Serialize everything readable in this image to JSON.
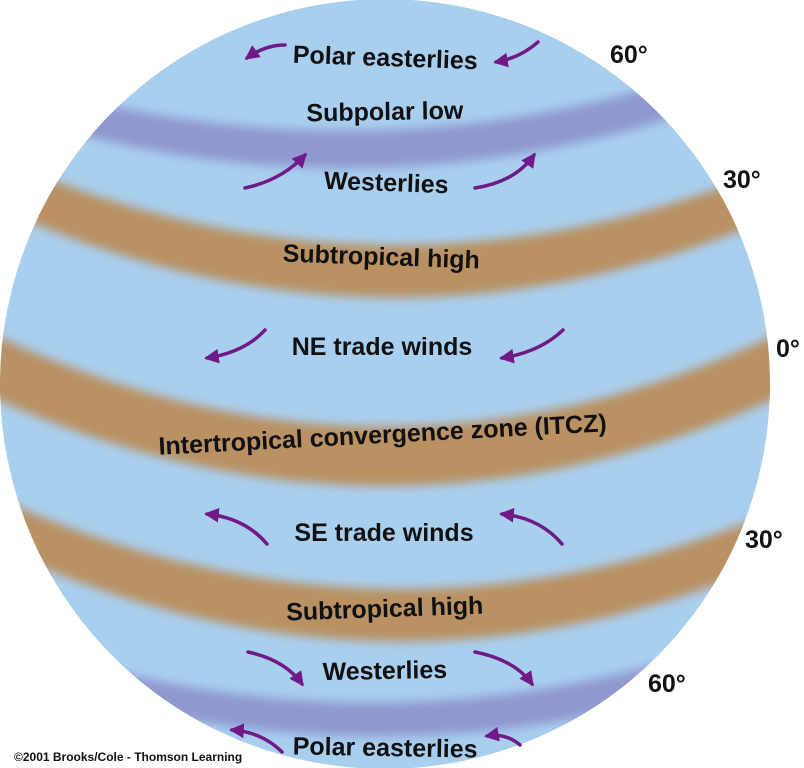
{
  "colors": {
    "globe": "#a9cfef",
    "subpolar_low": "#8f98cf",
    "high_pressure": "#b99162",
    "arrow": "#6f1a86",
    "text": "#111111"
  },
  "labels": {
    "polar_easterlies_north": "Polar easterlies",
    "subpolar_low": "Subpolar low",
    "westerlies_north": "Westerlies",
    "subtropical_high_north": "Subtropical high",
    "ne_trade_winds": "NE trade winds",
    "itcz": "Intertropical convergence zone (ITCZ)",
    "se_trade_winds": "SE trade winds",
    "subtropical_high_south": "Subtropical high",
    "westerlies_south": "Westerlies",
    "polar_easterlies_south": "Polar easterlies"
  },
  "latitudes": {
    "lat_60_north": "60°",
    "lat_30_north": "30°",
    "lat_0": "0°",
    "lat_30_south": "30°",
    "lat_60_south": "60°"
  },
  "credit": "©2001 Brooks/Cole - Thomson Learning",
  "icons": {
    "arrow": "curved-wind-arrow-icon"
  }
}
